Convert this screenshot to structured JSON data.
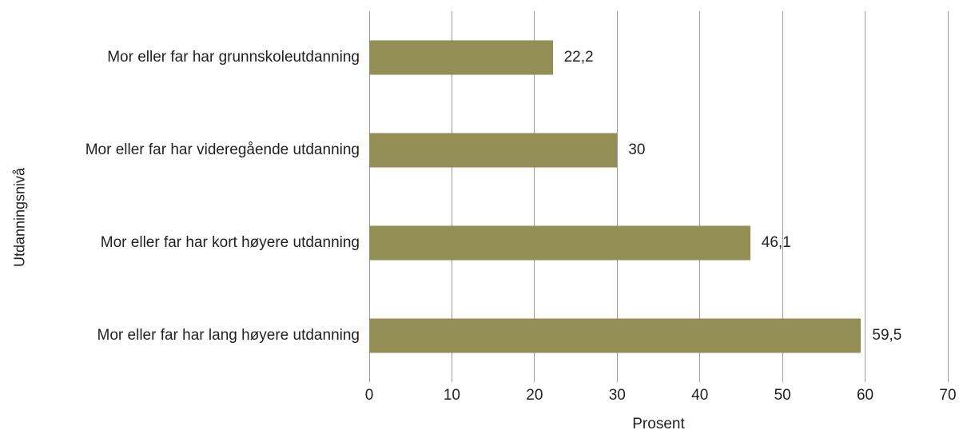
{
  "chart_data": {
    "type": "bar",
    "orientation": "horizontal",
    "title": "",
    "xlabel": "Prosent",
    "ylabel": "Utdanningsnivå",
    "categories": [
      "Mor eller far har grunnskoleutdanning",
      "Mor eller far har videregående utdanning",
      "Mor eller far har kort høyere utdanning",
      "Mor eller far har lang høyere utdanning"
    ],
    "values": [
      22.2,
      30,
      46.1,
      59.5
    ],
    "value_labels": [
      "22,2",
      "30",
      "46,1",
      "59,5"
    ],
    "xlim": [
      0,
      70
    ],
    "xticks": [
      0,
      10,
      20,
      30,
      40,
      50,
      60,
      70
    ],
    "grid": true,
    "legend": null,
    "colors": {
      "bar": "#928e55",
      "gridline": "#9b9b9b",
      "text": "#231f20",
      "background": "#ffffff"
    }
  }
}
